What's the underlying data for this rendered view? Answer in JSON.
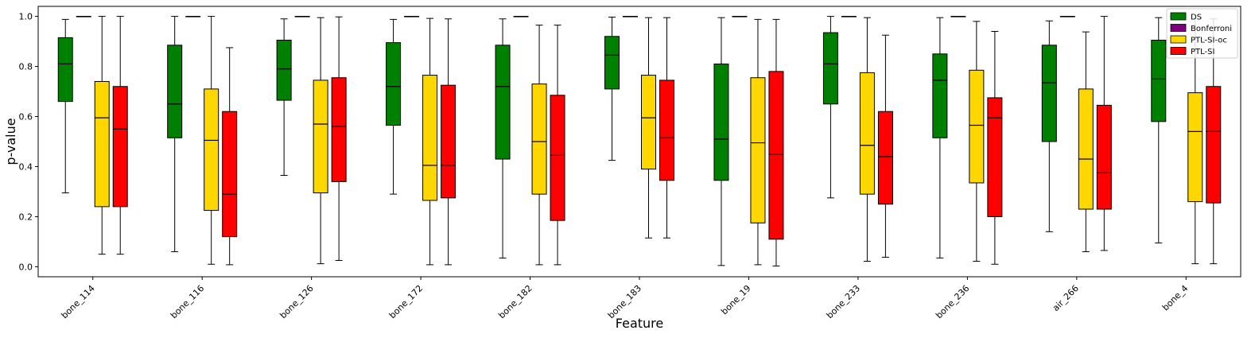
{
  "chart_data": {
    "type": "boxplot",
    "xlabel": "Feature",
    "ylabel": "p-value",
    "ylim": [
      -0.04,
      1.04
    ],
    "yticks": [
      0.0,
      0.2,
      0.4,
      0.6,
      0.8,
      1.0
    ],
    "ytick_labels": [
      "0.0",
      "0.2",
      "0.4",
      "0.6",
      "0.8",
      "1.0"
    ],
    "legend_position": "top-right",
    "categories": [
      "bone_114",
      "bone_116",
      "bone_126",
      "bone_172",
      "bone_182",
      "bone_183",
      "bone_19",
      "bone_233",
      "bone_236",
      "air_266",
      "bone_4"
    ],
    "series": [
      {
        "name": "DS",
        "color": "#008000",
        "boxes": [
          {
            "whislo": 0.295,
            "q1": 0.66,
            "med": 0.81,
            "q3": 0.915,
            "whishi": 0.988
          },
          {
            "whislo": 0.06,
            "q1": 0.515,
            "med": 0.65,
            "q3": 0.885,
            "whishi": 1.0
          },
          {
            "whislo": 0.365,
            "q1": 0.665,
            "med": 0.79,
            "q3": 0.905,
            "whishi": 0.99
          },
          {
            "whislo": 0.29,
            "q1": 0.565,
            "med": 0.72,
            "q3": 0.895,
            "whishi": 0.988
          },
          {
            "whislo": 0.035,
            "q1": 0.43,
            "med": 0.72,
            "q3": 0.885,
            "whishi": 0.99
          },
          {
            "whislo": 0.425,
            "q1": 0.71,
            "med": 0.845,
            "q3": 0.92,
            "whishi": 0.997
          },
          {
            "whislo": 0.005,
            "q1": 0.345,
            "med": 0.51,
            "q3": 0.81,
            "whishi": 0.995
          },
          {
            "whislo": 0.275,
            "q1": 0.65,
            "med": 0.81,
            "q3": 0.935,
            "whishi": 1.0
          },
          {
            "whislo": 0.035,
            "q1": 0.515,
            "med": 0.745,
            "q3": 0.85,
            "whishi": 0.995
          },
          {
            "whislo": 0.14,
            "q1": 0.5,
            "med": 0.735,
            "q3": 0.885,
            "whishi": 0.982
          },
          {
            "whislo": 0.095,
            "q1": 0.58,
            "med": 0.75,
            "q3": 0.905,
            "whishi": 0.995
          }
        ]
      },
      {
        "name": "Bonferroni",
        "color": "#800080",
        "boxes": [
          {
            "whislo": 1.0,
            "q1": 1.0,
            "med": 1.0,
            "q3": 1.0,
            "whishi": 1.0
          },
          {
            "whislo": 1.0,
            "q1": 1.0,
            "med": 1.0,
            "q3": 1.0,
            "whishi": 1.0
          },
          {
            "whislo": 1.0,
            "q1": 1.0,
            "med": 1.0,
            "q3": 1.0,
            "whishi": 1.0
          },
          {
            "whislo": 1.0,
            "q1": 1.0,
            "med": 1.0,
            "q3": 1.0,
            "whishi": 1.0
          },
          {
            "whislo": 1.0,
            "q1": 1.0,
            "med": 1.0,
            "q3": 1.0,
            "whishi": 1.0
          },
          {
            "whislo": 1.0,
            "q1": 1.0,
            "med": 1.0,
            "q3": 1.0,
            "whishi": 1.0
          },
          {
            "whislo": 1.0,
            "q1": 1.0,
            "med": 1.0,
            "q3": 1.0,
            "whishi": 1.0
          },
          {
            "whislo": 1.0,
            "q1": 1.0,
            "med": 1.0,
            "q3": 1.0,
            "whishi": 1.0
          },
          {
            "whislo": 1.0,
            "q1": 1.0,
            "med": 1.0,
            "q3": 1.0,
            "whishi": 1.0
          },
          {
            "whislo": 1.0,
            "q1": 1.0,
            "med": 1.0,
            "q3": 1.0,
            "whishi": 1.0
          },
          {
            "whislo": 1.0,
            "q1": 1.0,
            "med": 1.0,
            "q3": 1.0,
            "whishi": 1.0
          }
        ]
      },
      {
        "name": "PTL-SI-oc",
        "color": "#FFD700",
        "boxes": [
          {
            "whislo": 0.05,
            "q1": 0.24,
            "med": 0.595,
            "q3": 0.74,
            "whishi": 1.0
          },
          {
            "whislo": 0.01,
            "q1": 0.225,
            "med": 0.505,
            "q3": 0.71,
            "whishi": 1.0
          },
          {
            "whislo": 0.012,
            "q1": 0.295,
            "med": 0.57,
            "q3": 0.745,
            "whishi": 0.995
          },
          {
            "whislo": 0.008,
            "q1": 0.265,
            "med": 0.405,
            "q3": 0.765,
            "whishi": 0.992
          },
          {
            "whislo": 0.008,
            "q1": 0.29,
            "med": 0.5,
            "q3": 0.73,
            "whishi": 0.965
          },
          {
            "whislo": 0.115,
            "q1": 0.39,
            "med": 0.595,
            "q3": 0.765,
            "whishi": 0.995
          },
          {
            "whislo": 0.008,
            "q1": 0.175,
            "med": 0.495,
            "q3": 0.755,
            "whishi": 0.988
          },
          {
            "whislo": 0.022,
            "q1": 0.29,
            "med": 0.485,
            "q3": 0.775,
            "whishi": 0.995
          },
          {
            "whislo": 0.022,
            "q1": 0.335,
            "med": 0.565,
            "q3": 0.785,
            "whishi": 0.98
          },
          {
            "whislo": 0.06,
            "q1": 0.23,
            "med": 0.43,
            "q3": 0.71,
            "whishi": 0.938
          },
          {
            "whislo": 0.012,
            "q1": 0.26,
            "med": 0.54,
            "q3": 0.695,
            "whishi": 0.99
          }
        ]
      },
      {
        "name": "PTL-SI",
        "color": "#FF0000",
        "boxes": [
          {
            "whislo": 0.05,
            "q1": 0.24,
            "med": 0.55,
            "q3": 0.72,
            "whishi": 1.0
          },
          {
            "whislo": 0.008,
            "q1": 0.12,
            "med": 0.29,
            "q3": 0.62,
            "whishi": 0.875
          },
          {
            "whislo": 0.025,
            "q1": 0.34,
            "med": 0.56,
            "q3": 0.755,
            "whishi": 0.998
          },
          {
            "whislo": 0.008,
            "q1": 0.275,
            "med": 0.405,
            "q3": 0.725,
            "whishi": 0.99
          },
          {
            "whislo": 0.008,
            "q1": 0.185,
            "med": 0.445,
            "q3": 0.685,
            "whishi": 0.965
          },
          {
            "whislo": 0.115,
            "q1": 0.345,
            "med": 0.515,
            "q3": 0.745,
            "whishi": 0.995
          },
          {
            "whislo": 0.003,
            "q1": 0.11,
            "med": 0.45,
            "q3": 0.78,
            "whishi": 0.988
          },
          {
            "whislo": 0.038,
            "q1": 0.25,
            "med": 0.44,
            "q3": 0.62,
            "whishi": 0.925
          },
          {
            "whislo": 0.01,
            "q1": 0.2,
            "med": 0.595,
            "q3": 0.675,
            "whishi": 0.94
          },
          {
            "whislo": 0.065,
            "q1": 0.23,
            "med": 0.375,
            "q3": 0.645,
            "whishi": 1.0
          },
          {
            "whislo": 0.012,
            "q1": 0.255,
            "med": 0.54,
            "q3": 0.72,
            "whishi": 0.99
          }
        ]
      }
    ]
  }
}
